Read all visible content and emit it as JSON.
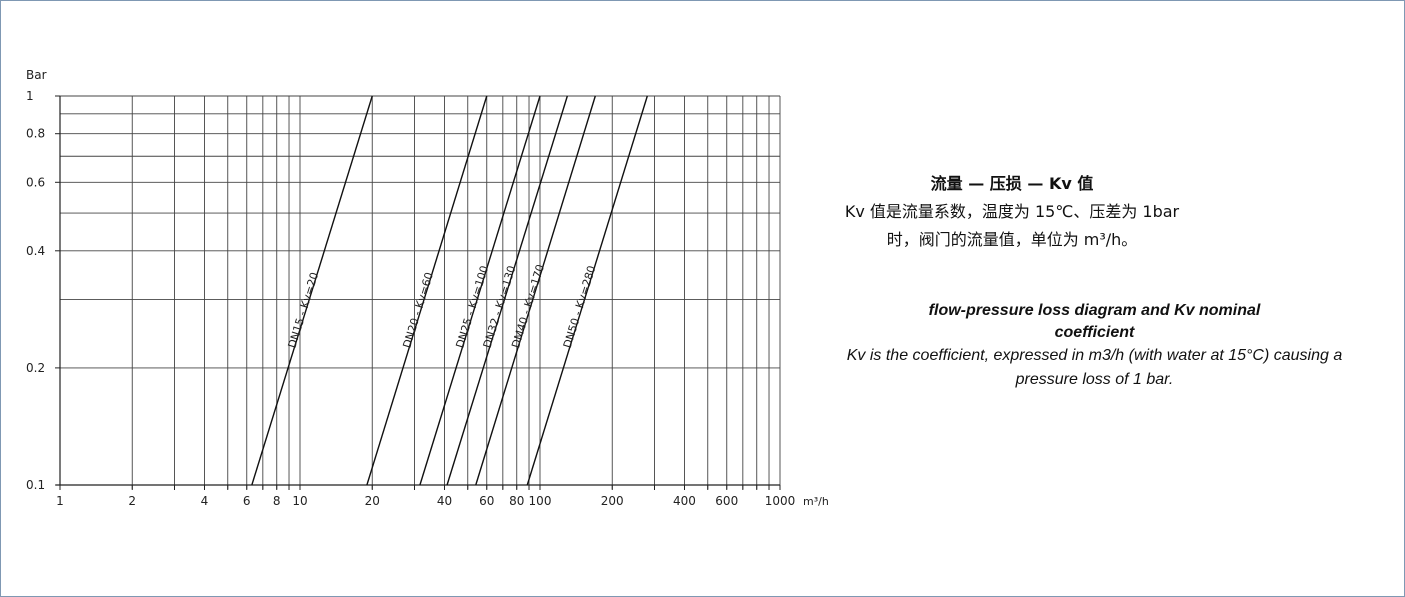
{
  "chart_data": {
    "type": "line",
    "xscale": "log",
    "yscale": "log",
    "xlim": [
      1,
      1000
    ],
    "ylim": [
      0.1,
      1
    ],
    "ylabel": "Bar",
    "xunit": "m³/h",
    "x_ticks": [
      1,
      2,
      4,
      6,
      8,
      10,
      20,
      40,
      60,
      80,
      100,
      200,
      400,
      600,
      1000
    ],
    "x_tick_labels": [
      "1",
      "2",
      "4",
      "6",
      "8",
      "10",
      "20",
      "40",
      "60",
      "80",
      "100",
      "200",
      "400",
      "600",
      "1000"
    ],
    "x_grid": [
      2,
      3,
      4,
      5,
      6,
      7,
      8,
      9,
      10,
      20,
      30,
      40,
      50,
      60,
      70,
      80,
      90,
      100,
      200,
      300,
      400,
      500,
      600,
      700,
      800,
      900,
      1000
    ],
    "y_ticks": [
      0.1,
      0.2,
      0.4,
      0.6,
      0.8,
      1
    ],
    "y_tick_labels": [
      "0.1",
      "0.2",
      "0.4",
      "0.6",
      "0.8",
      "1"
    ],
    "y_grid": [
      0.2,
      0.3,
      0.4,
      0.5,
      0.6,
      0.7,
      0.8,
      0.9,
      1
    ],
    "grid": true,
    "series": [
      {
        "name": "DN15 - Kv=20",
        "kv": 20,
        "x": [
          6.3,
          20
        ],
        "y": [
          0.1,
          1
        ]
      },
      {
        "name": "DN20 - Kv=60",
        "kv": 60,
        "x": [
          19,
          60
        ],
        "y": [
          0.1,
          1
        ]
      },
      {
        "name": "DN25 - Kv=100",
        "kv": 100,
        "x": [
          31.6,
          100
        ],
        "y": [
          0.1,
          1
        ]
      },
      {
        "name": "DN32 - Kv=130",
        "kv": 130,
        "x": [
          41,
          130
        ],
        "y": [
          0.1,
          1
        ]
      },
      {
        "name": "DM40 - Kv=170",
        "kv": 170,
        "x": [
          54,
          170
        ],
        "y": [
          0.1,
          1
        ]
      },
      {
        "name": "DN50 - Kv=280",
        "kv": 280,
        "x": [
          88.5,
          280
        ],
        "y": [
          0.1,
          1
        ]
      }
    ]
  },
  "desc_zh": {
    "title": "流量 — 压损 — Kv 值",
    "body": "Kv 值是流量系数，温度为 15℃、压差为 1bar 时，阀门的流量值，单位为 m³/h。"
  },
  "desc_en": {
    "title": "flow-pressure loss diagram and Kv nominal coefficient",
    "body": "Kv is the coefficient, expressed in m3/h (with water at 15°C) causing a pressure loss of 1 bar."
  },
  "colors": {
    "frame": "#7f98b3",
    "grid": "#444444",
    "line": "#111111"
  }
}
